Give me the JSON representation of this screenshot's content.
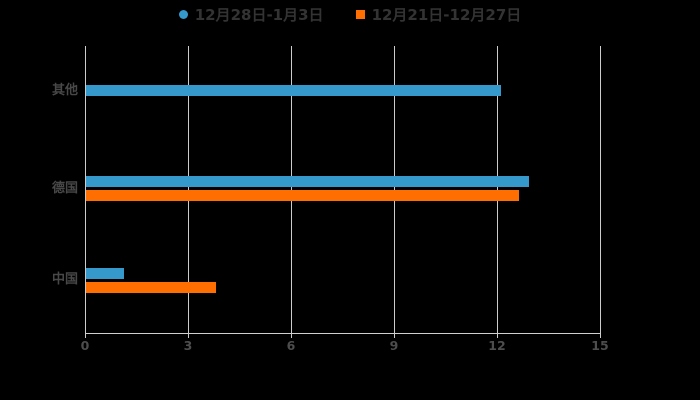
{
  "chart_data": {
    "type": "bar",
    "orientation": "horizontal",
    "title": "",
    "xlabel": "",
    "ylabel": "",
    "categories": [
      "其他",
      "德国",
      "中国"
    ],
    "series": [
      {
        "name": "12月28日-1月3日",
        "color": "#3599cc",
        "marker": "circle",
        "values": [
          12.1,
          12.9,
          1.1
        ]
      },
      {
        "name": "12月21日-12月27日",
        "color": "#ff6e00",
        "marker": "square",
        "values": [
          null,
          12.6,
          3.8
        ]
      }
    ],
    "xlim": [
      0,
      15
    ],
    "xticks": [
      0,
      3,
      6,
      9,
      12,
      15
    ],
    "grid": true,
    "legend_position": "top",
    "colors": {
      "background": "#000000",
      "axis": "#d0d0d0",
      "gridline": "#cccccc",
      "tick_label": "#4d4d4d",
      "category_label": "#484848",
      "legend_text": "#333333"
    }
  }
}
